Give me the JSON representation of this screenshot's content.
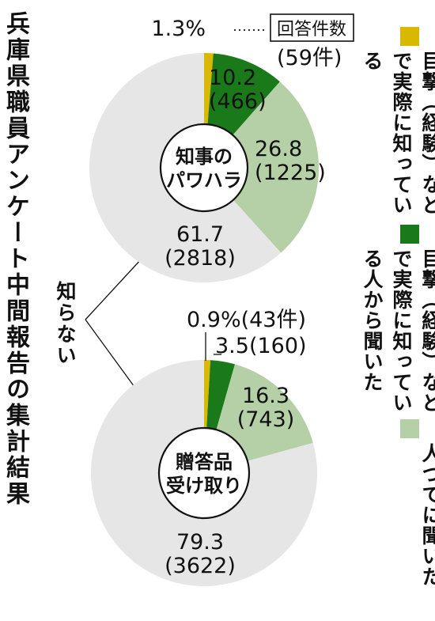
{
  "title": "兵庫県職員アンケート中間報告の集計結果",
  "not_know_label": "知らない",
  "count_header_label": "回答件数",
  "colors": {
    "direct": "#d8b800",
    "heard_from_witness": "#1a7a1a",
    "hearsay": "#b5cfa6",
    "not_know": "#e6e6e6"
  },
  "legend": [
    {
      "key": "direct",
      "text": "目撃（経験）などで実際に知っている"
    },
    {
      "key": "heard_from_witness",
      "text": "目撃（経験）などで実際に知っている人から聞いた"
    },
    {
      "key": "hearsay",
      "text": "人づてに聞いた"
    }
  ],
  "chart_data": [
    {
      "type": "pie",
      "title": "知事のパワハラ",
      "title_lines": [
        "知事の",
        "パワハラ"
      ],
      "slices": [
        {
          "label": "目撃（経験）などで実際に知っている",
          "value": 1.3,
          "count": 59,
          "value_text": "1.3%",
          "count_text": "(59件)"
        },
        {
          "label": "目撃（経験）などで実際に知っている人から聞いた",
          "value": 10.2,
          "count": 466,
          "value_text": "10.2",
          "count_text": "(466)"
        },
        {
          "label": "人づてに聞いた",
          "value": 26.8,
          "count": 1225,
          "value_text": "26.8",
          "count_text": "(1225)"
        },
        {
          "label": "知らない",
          "value": 61.7,
          "count": 2818,
          "value_text": "61.7",
          "count_text": "(2818)"
        }
      ]
    },
    {
      "type": "pie",
      "title": "贈答品受け取り",
      "title_lines": [
        "贈答品",
        "受け取り"
      ],
      "slices": [
        {
          "label": "目撃（経験）などで実際に知っている",
          "value": 0.9,
          "count": 43,
          "value_text": "0.9%",
          "count_text": "(43件)"
        },
        {
          "label": "目撃（経験）などで実際に知っている人から聞いた",
          "value": 3.5,
          "count": 160,
          "value_text": "3.5",
          "count_text": "(160)"
        },
        {
          "label": "人づてに聞いた",
          "value": 16.3,
          "count": 743,
          "value_text": "16.3",
          "count_text": "(743)"
        },
        {
          "label": "知らない",
          "value": 79.3,
          "count": 3622,
          "value_text": "79.3",
          "count_text": "(3622)"
        }
      ]
    }
  ]
}
